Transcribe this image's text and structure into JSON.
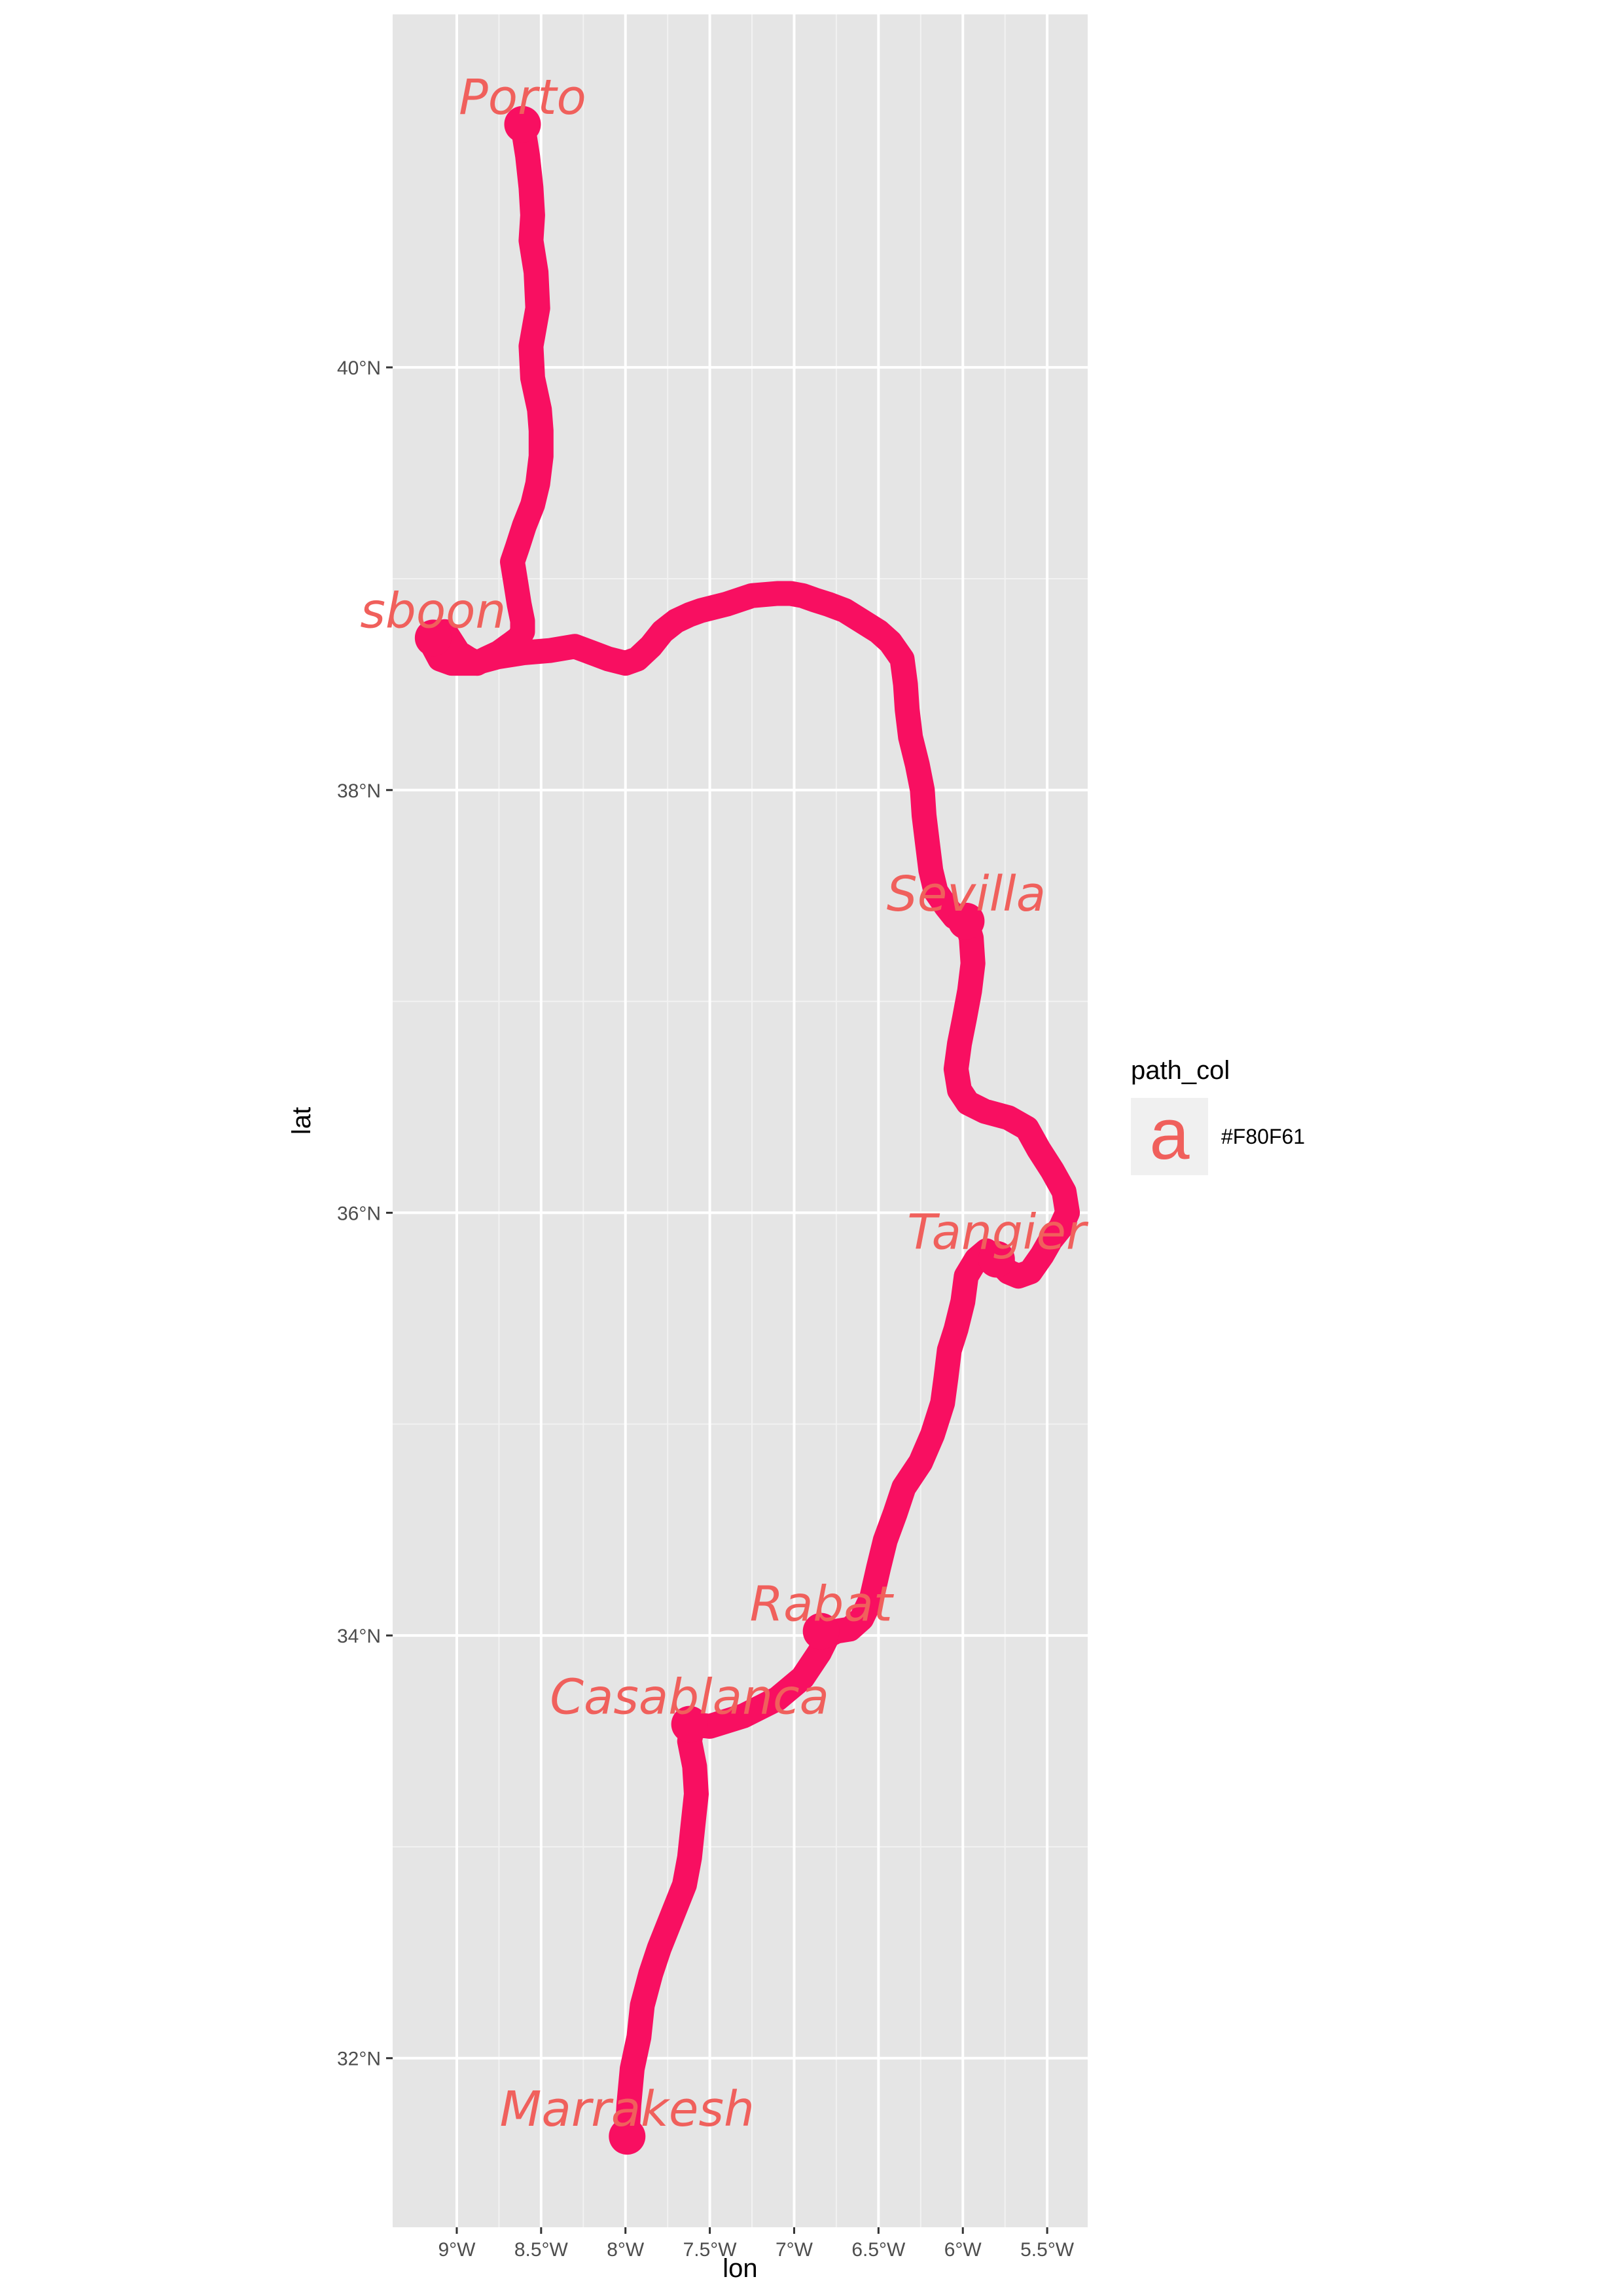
{
  "chart_data": {
    "type": "line",
    "xlabel": "lon",
    "ylabel": "lat",
    "xlim": [
      -9.38,
      -5.26
    ],
    "ylim": [
      31.2,
      41.67
    ],
    "x_ticks": [
      -9,
      -8.5,
      -8,
      -7.5,
      -7,
      -6.5,
      -6,
      -5.5
    ],
    "x_tick_labels": [
      "9°W",
      "8.5°W",
      "8°W",
      "7.5°W",
      "7°W",
      "6.5°W",
      "6°W",
      "5.5°W"
    ],
    "y_ticks": [
      32,
      34,
      36,
      38,
      40
    ],
    "y_tick_labels": [
      "32°N",
      "34°N",
      "36°N",
      "38°N",
      "40°N"
    ],
    "grid": true,
    "background": "#e5e5e5",
    "path_color": "#f80f61",
    "label_color": "#f0605c",
    "legend": {
      "title": "path_col",
      "placement": "right",
      "entries": [
        {
          "key_glyph": "a",
          "label": "#F80F61"
        }
      ]
    },
    "series": [
      {
        "x": [
          -8.61,
          -8.58,
          -8.56,
          -8.55,
          -8.56,
          -8.53,
          -8.52,
          -8.56,
          -8.55,
          -8.51,
          -8.5,
          -8.5,
          -8.52,
          -8.55,
          -8.6,
          -8.64,
          -8.67,
          -8.65,
          -8.63,
          -8.61,
          -8.61,
          -8.63,
          -8.68,
          -8.75,
          -8.83,
          -8.88,
          -8.93,
          -8.99,
          -9.03,
          -9.07,
          -9.13,
          -9.14,
          -9.1,
          -9.03,
          -8.9,
          -8.76,
          -8.6,
          -8.45,
          -8.3,
          -8.2,
          -8.1,
          -8.0,
          -7.93,
          -7.85,
          -7.78,
          -7.7,
          -7.62,
          -7.55,
          -7.4,
          -7.25,
          -7.1,
          -7.02,
          -6.95,
          -6.88,
          -6.8,
          -6.7,
          -6.6,
          -6.5,
          -6.43,
          -6.36,
          -6.34,
          -6.33,
          -6.31,
          -6.27,
          -6.24,
          -6.23,
          -6.21,
          -6.19,
          -6.16,
          -6.1,
          -6.05,
          -5.98,
          -5.95,
          -5.94,
          -5.96,
          -5.99,
          -6.02,
          -6.04,
          -6.02,
          -5.97,
          -5.87,
          -5.73,
          -5.62,
          -5.55,
          -5.47,
          -5.4,
          -5.38,
          -5.42,
          -5.48,
          -5.53,
          -5.6,
          -5.67,
          -5.73,
          -5.8,
          -5.86,
          -5.92,
          -5.98,
          -6.0,
          -6.04,
          -6.08,
          -6.1,
          -6.12,
          -6.18,
          -6.25,
          -6.35,
          -6.4,
          -6.46,
          -6.5,
          -6.54,
          -6.6,
          -6.67,
          -6.75,
          -6.8,
          -6.85,
          -6.95,
          -7.1,
          -7.3,
          -7.5,
          -7.6,
          -7.62,
          -7.59,
          -7.58,
          -7.6,
          -7.62,
          -7.65,
          -7.72,
          -7.8,
          -7.85,
          -7.9,
          -7.92,
          -7.96,
          -7.98,
          -7.99
        ],
        "y": [
          41.15,
          41.0,
          40.85,
          40.72,
          40.6,
          40.45,
          40.28,
          40.1,
          39.95,
          39.8,
          39.7,
          39.58,
          39.45,
          39.35,
          39.25,
          39.15,
          39.08,
          38.98,
          38.88,
          38.8,
          38.75,
          38.72,
          38.69,
          38.65,
          38.62,
          38.6,
          38.62,
          38.65,
          38.7,
          38.75,
          38.73,
          38.68,
          38.62,
          38.6,
          38.6,
          38.63,
          38.65,
          38.66,
          38.68,
          38.65,
          38.62,
          38.6,
          38.62,
          38.68,
          38.75,
          38.8,
          38.83,
          38.85,
          38.88,
          38.92,
          38.93,
          38.93,
          38.92,
          38.9,
          38.88,
          38.85,
          38.8,
          38.75,
          38.7,
          38.62,
          38.5,
          38.38,
          38.25,
          38.12,
          38.0,
          37.88,
          37.75,
          37.62,
          37.52,
          37.45,
          37.4,
          37.38,
          37.3,
          37.18,
          37.05,
          36.92,
          36.8,
          36.68,
          36.58,
          36.52,
          36.48,
          36.45,
          36.4,
          36.3,
          36.2,
          36.1,
          36.0,
          35.93,
          35.87,
          35.8,
          35.72,
          35.7,
          35.72,
          35.78,
          35.82,
          35.78,
          35.7,
          35.58,
          35.45,
          35.35,
          35.22,
          35.1,
          34.95,
          34.82,
          34.7,
          34.58,
          34.45,
          34.32,
          34.18,
          34.08,
          34.03,
          34.02,
          34.0,
          33.92,
          33.8,
          33.7,
          33.62,
          33.57,
          33.58,
          33.5,
          33.38,
          33.25,
          33.1,
          32.95,
          32.82,
          32.68,
          32.52,
          32.4,
          32.25,
          32.1,
          31.95,
          31.78,
          31.63
        ]
      }
    ],
    "annotations": [
      {
        "text": "Porto",
        "x": -8.61,
        "y": 41.15
      },
      {
        "text": "sboon",
        "x": -9.14,
        "y": 38.72
      },
      {
        "text": "Sevilla",
        "x": -5.98,
        "y": 37.38
      },
      {
        "text": "Tangier",
        "x": -5.8,
        "y": 35.78
      },
      {
        "text": "Rabat",
        "x": -6.84,
        "y": 34.02
      },
      {
        "text": "Casablanca",
        "x": -7.62,
        "y": 33.58
      },
      {
        "text": "Marrakesh",
        "x": -7.99,
        "y": 31.63
      }
    ]
  }
}
